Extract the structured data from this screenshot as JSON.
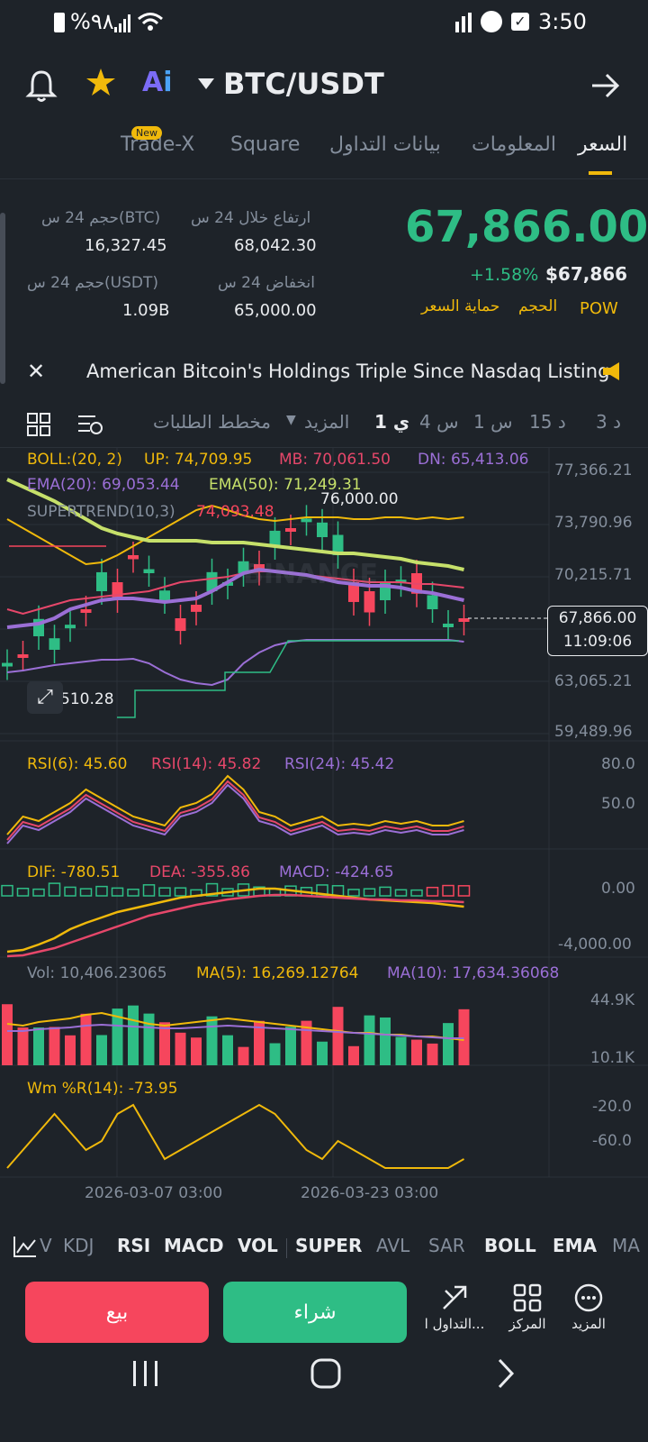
{
  "status_bar": {
    "battery": "%٩٨",
    "time": "3:50"
  },
  "header": {
    "pair": "BTC/USDT"
  },
  "tabs": [
    {
      "label": "السعر",
      "active": true
    },
    {
      "label": "المعلومات"
    },
    {
      "label": "بيانات التداول"
    },
    {
      "label": "Square"
    },
    {
      "label": "Trade-X",
      "badge": "New"
    }
  ],
  "price": {
    "last": "67,866.00",
    "change": "+1.58%",
    "usd": "$67,866",
    "tags": [
      "POW",
      "الحجم",
      "حماية السعر"
    ],
    "stats": {
      "high_label": "ارتفاع خلال 24 س",
      "high": "68,042.30",
      "low_label": "انخفاض 24 س",
      "low": "65,000.00",
      "vol_btc_label": "حجم 24 س(BTC)",
      "vol_btc": "16,327.45",
      "vol_usdt_label": "حجم 24 س(USDT)",
      "vol_usdt": "1.09B"
    }
  },
  "news": "American Bitcoin's Holdings Triple Since Nasdaq Listing",
  "toolbar": {
    "intervals": [
      "3 د",
      "15 د",
      "1 س",
      "4 س",
      "1 ي"
    ],
    "active_interval": "1 ي",
    "more": "المزيد",
    "depth": "مخطط الطلبات"
  },
  "chart": {
    "boll": {
      "label": "BOLL:(20, 2)",
      "up": "UP: 74,709.95",
      "mb": "MB: 70,061.50",
      "dn": "DN: 65,413.06"
    },
    "ema": {
      "ema20": "EMA(20): 69,053.44",
      "ema50": "EMA(50): 71,249.31"
    },
    "supertrend": {
      "label": "SUPERTREND(10,3)",
      "value": "74,093.48"
    },
    "price_axis": [
      "77,366.21",
      "73,790.96",
      "70,215.71",
      "63,065.21",
      "59,489.96"
    ],
    "high_marker": "76,000.00",
    "low_marker": "62,510.28",
    "current_price": "67,866.00",
    "countdown": "11:09:06",
    "rsi": {
      "r6": "RSI(6): 45.60",
      "r14": "RSI(14): 45.82",
      "r24": "RSI(24): 45.42",
      "axis": [
        "80.0",
        "50.0"
      ]
    },
    "macd": {
      "dif": "DIF: -780.51",
      "dea": "DEA: -355.86",
      "macd": "MACD: -424.65",
      "axis": [
        "0.00",
        "-4,000.00"
      ]
    },
    "vol": {
      "vol": "Vol: 10,406.23065",
      "ma5": "MA(5): 16,269.12764",
      "ma10": "MA(10): 17,634.36068",
      "axis": [
        "44.9K",
        "10.1K"
      ]
    },
    "wr": {
      "label": "Wm %R(14): -73.95",
      "axis": [
        "-20.0",
        "-60.0"
      ]
    },
    "dates": [
      "2026-03-07 03:00",
      "2026-03-23 03:00"
    ],
    "watermark": "BINANCE"
  },
  "indicators": [
    "V",
    "KDJ",
    "RSI",
    "MACD",
    "VOL",
    "SUPER",
    "AVL",
    "SAR",
    "BOLL",
    "EMA",
    "MA"
  ],
  "actions": {
    "sell": "بيع",
    "buy": "شراء",
    "trade": "التداول ا...",
    "center": "المركز",
    "more": "المزيد"
  },
  "colors": {
    "up": "#2ebd85",
    "down": "#f6465d",
    "accent": "#f0b90b",
    "bg": "#1e2329"
  }
}
